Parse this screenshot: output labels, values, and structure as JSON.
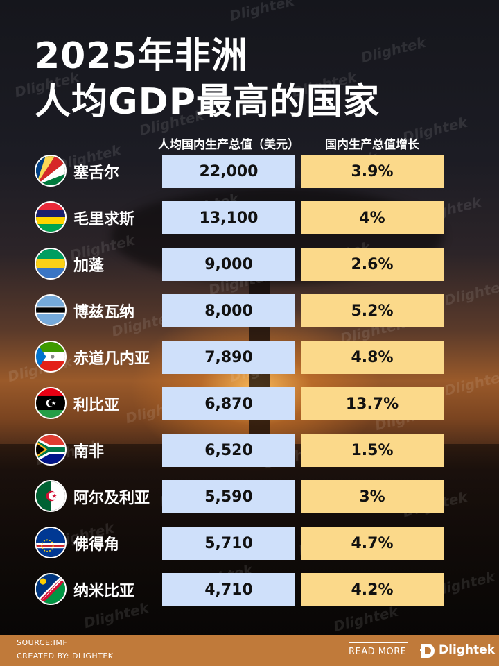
{
  "title_line1": "2025年非洲",
  "title_line2": "人均GDP最高的国家",
  "columns": {
    "gdp_header": "人均国内生产总值（美元）",
    "growth_header": "国内生产总值增长"
  },
  "rows": [
    {
      "country": "塞舌尔",
      "gdp": "22,000",
      "growth": "3.9%",
      "flag_icon": "seychelles-flag-icon"
    },
    {
      "country": "毛里求斯",
      "gdp": "13,100",
      "growth": "4%",
      "flag_icon": "mauritius-flag-icon"
    },
    {
      "country": "加蓬",
      "gdp": "9,000",
      "growth": "2.6%",
      "flag_icon": "gabon-flag-icon"
    },
    {
      "country": "博兹瓦纳",
      "gdp": "8,000",
      "growth": "5.2%",
      "flag_icon": "botswana-flag-icon"
    },
    {
      "country": "赤道几内亚",
      "gdp": "7,890",
      "growth": "4.8%",
      "flag_icon": "equatorial-guinea-flag-icon"
    },
    {
      "country": "利比亚",
      "gdp": "6,870",
      "growth": "13.7%",
      "flag_icon": "libya-flag-icon"
    },
    {
      "country": "南非",
      "gdp": "6,520",
      "growth": "1.5%",
      "flag_icon": "south-africa-flag-icon"
    },
    {
      "country": "阿尔及利亚",
      "gdp": "5,590",
      "growth": "3%",
      "flag_icon": "algeria-flag-icon"
    },
    {
      "country": "佛得角",
      "gdp": "5,710",
      "growth": "4.7%",
      "flag_icon": "cape-verde-flag-icon"
    },
    {
      "country": "纳米比亚",
      "gdp": "4,710",
      "growth": "4.2%",
      "flag_icon": "namibia-flag-icon"
    }
  ],
  "footer": {
    "source": "SOURCE:IMF",
    "created": "CREATED BY: DLIGHTEK",
    "read_more": "READ MORE",
    "brand": "Dlightek"
  },
  "watermark_text": "Dlightek",
  "colors": {
    "gdp_cell": "#cfe0fa",
    "growth_cell": "#fbd98a",
    "footer_bar": "#c07a3a"
  }
}
